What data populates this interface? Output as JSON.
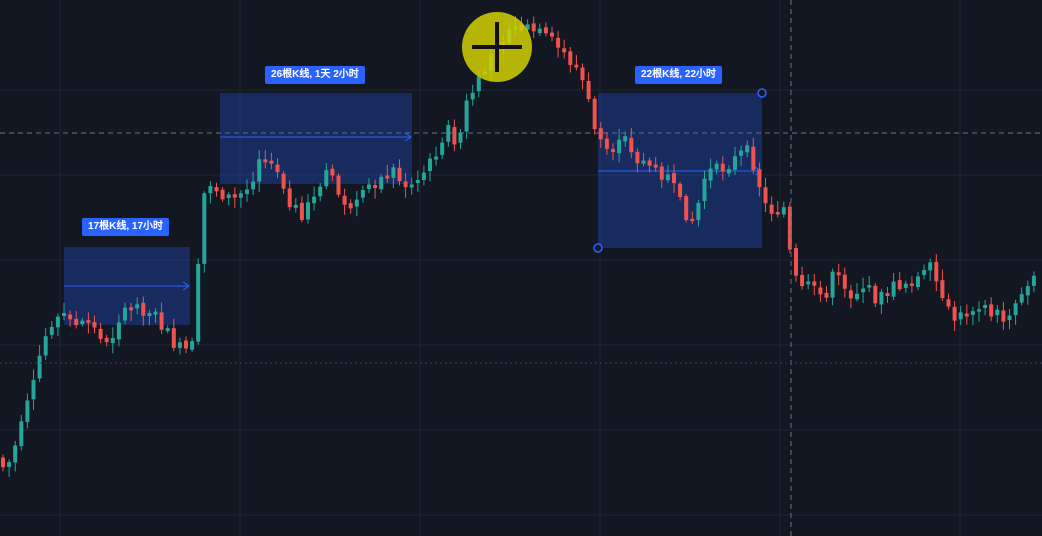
{
  "colors": {
    "background": "#131722",
    "grid": "#1e2433",
    "up": "#26a69a",
    "down": "#ef5350",
    "range_fill": "rgba(41,98,255,0.28)",
    "range_line": "#2962ff",
    "crosshair": "#6b7280",
    "cursor_highlight": "#d4d000"
  },
  "cursor": {
    "icon": "crosshair-cursor-icon"
  },
  "range_tools": [
    {
      "label": "17根K线, 17小时"
    },
    {
      "label": "26根K线, 1天 2小时"
    },
    {
      "label": "22根K线, 22小时"
    }
  ]
}
